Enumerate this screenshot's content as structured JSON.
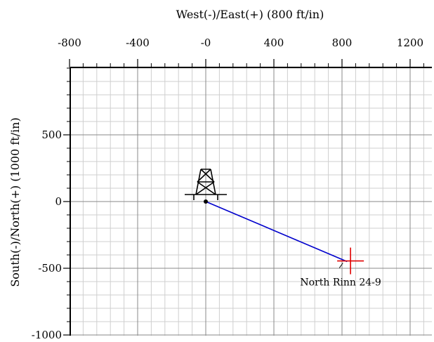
{
  "chart_data": {
    "type": "scatter",
    "title": "",
    "xlabel": "West(-)/East(+) (800 ft/in)",
    "ylabel": "South(-)/North(+) (1000 ft/in)",
    "x_axis_position": "top",
    "xlim": [
      -800,
      1300
    ],
    "ylim": [
      -1000,
      1000
    ],
    "x_ticks": [
      {
        "value": -800,
        "label": "-800"
      },
      {
        "value": -400,
        "label": "-400"
      },
      {
        "value": 0,
        "label": "-0"
      },
      {
        "value": 400,
        "label": "400"
      },
      {
        "value": 800,
        "label": "800"
      },
      {
        "value": 1200,
        "label": "1200"
      }
    ],
    "y_ticks": [
      {
        "value": 500,
        "label": "500"
      },
      {
        "value": 0,
        "label": "0"
      },
      {
        "value": -500,
        "label": "-500"
      },
      {
        "value": -1000,
        "label": "-1000"
      }
    ],
    "grid": {
      "major": true,
      "minor": true,
      "x_minor_step": 80,
      "y_minor_step": 100
    },
    "wellpath": {
      "color": "#0000cc",
      "points": [
        {
          "x": 0,
          "y": 0
        },
        {
          "x": 830,
          "y": -450
        }
      ]
    },
    "surface_location": {
      "x": 0,
      "y": 0,
      "icon": "drilling-rig-icon"
    },
    "target": {
      "x": 850,
      "y": -445,
      "color": "#e00000",
      "label": "North Rinn 24-9"
    }
  }
}
